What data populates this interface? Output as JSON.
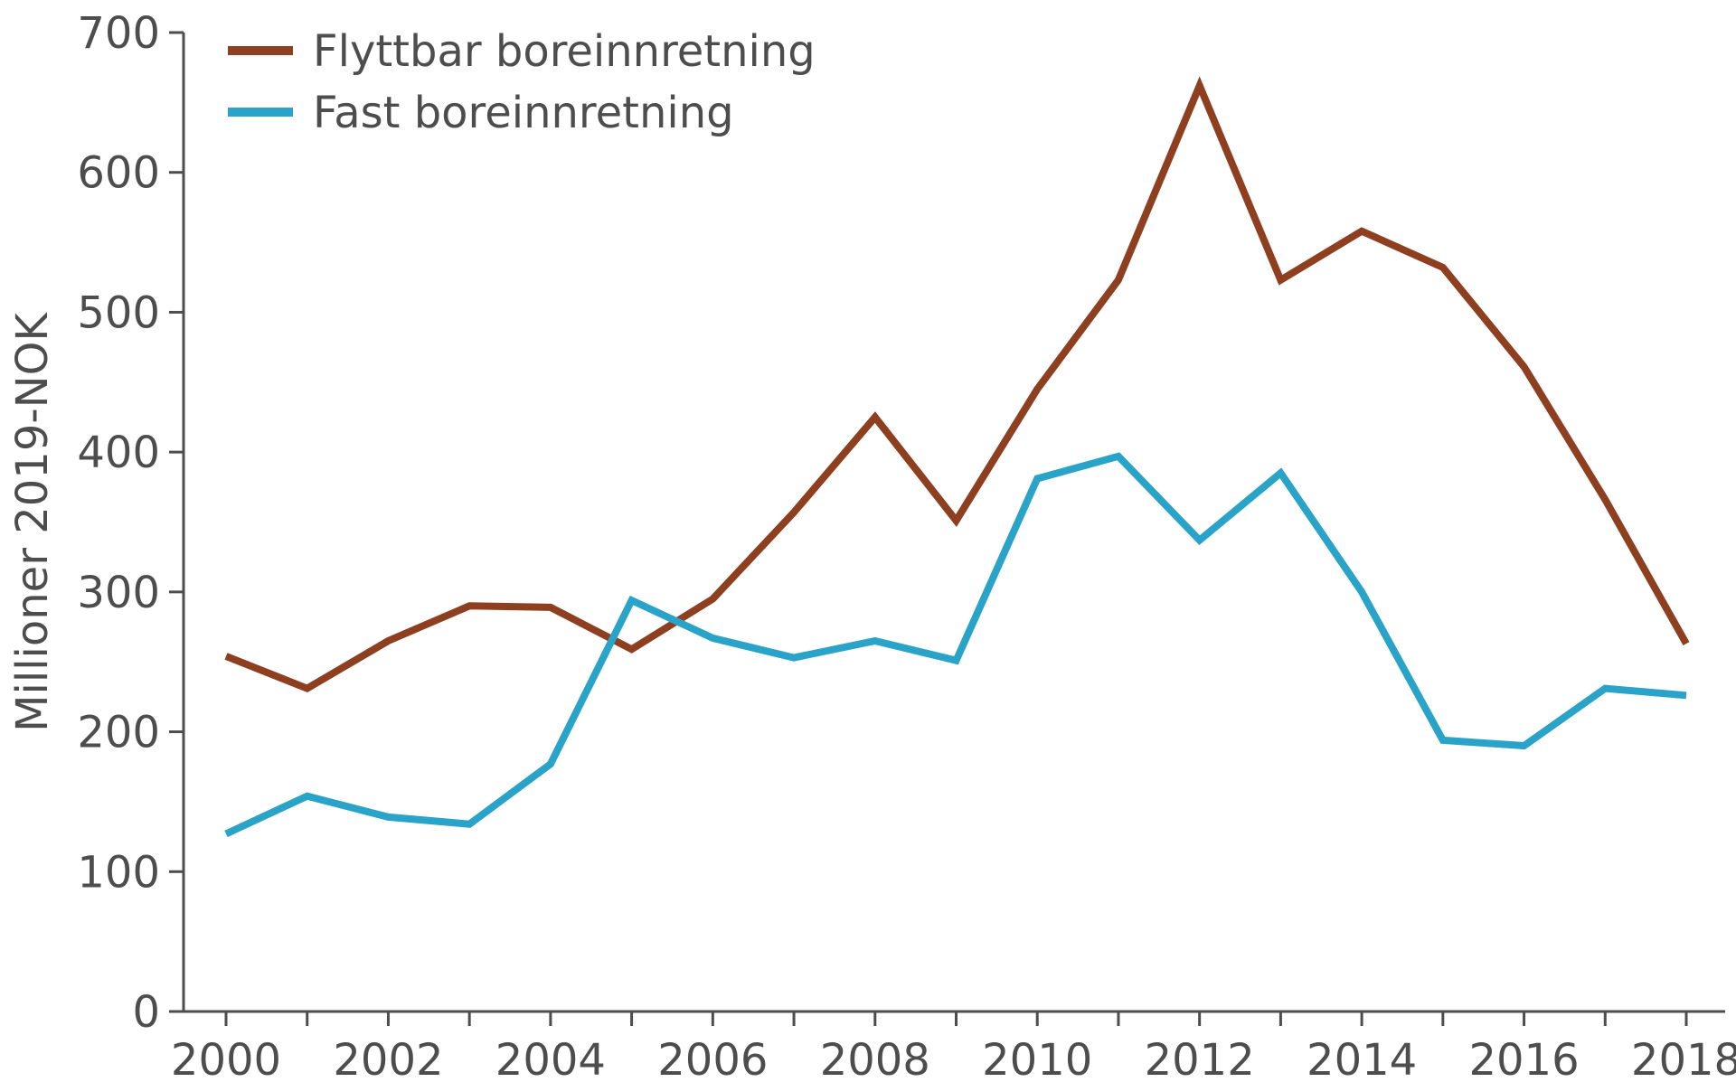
{
  "chart_data": {
    "type": "line",
    "title": "",
    "xlabel": "",
    "ylabel": "Millioner 2019-NOK",
    "ylim": [
      0,
      700
    ],
    "xlim": [
      2000,
      2018
    ],
    "yticks": [
      0,
      100,
      200,
      300,
      400,
      500,
      600,
      700
    ],
    "xticks": [
      2000,
      2002,
      2004,
      2006,
      2008,
      2010,
      2012,
      2014,
      2016,
      2018
    ],
    "grid": false,
    "legend_position": "top-left",
    "x": [
      2000,
      2001,
      2002,
      2003,
      2004,
      2005,
      2006,
      2007,
      2008,
      2009,
      2010,
      2011,
      2012,
      2013,
      2014,
      2015,
      2016,
      2017,
      2018
    ],
    "series": [
      {
        "name": "Flyttbar boreinnretning",
        "color": "#8e3f1f",
        "values": [
          254,
          231,
          265,
          290,
          289,
          259,
          295,
          357,
          425,
          351,
          445,
          523,
          662,
          523,
          558,
          532,
          461,
          366,
          263
        ]
      },
      {
        "name": "Fast boreinnretning",
        "color": "#2aa3c9",
        "values": [
          127,
          154,
          139,
          134,
          177,
          294,
          267,
          253,
          265,
          251,
          381,
          397,
          337,
          385,
          300,
          194,
          190,
          231,
          226
        ]
      }
    ]
  }
}
